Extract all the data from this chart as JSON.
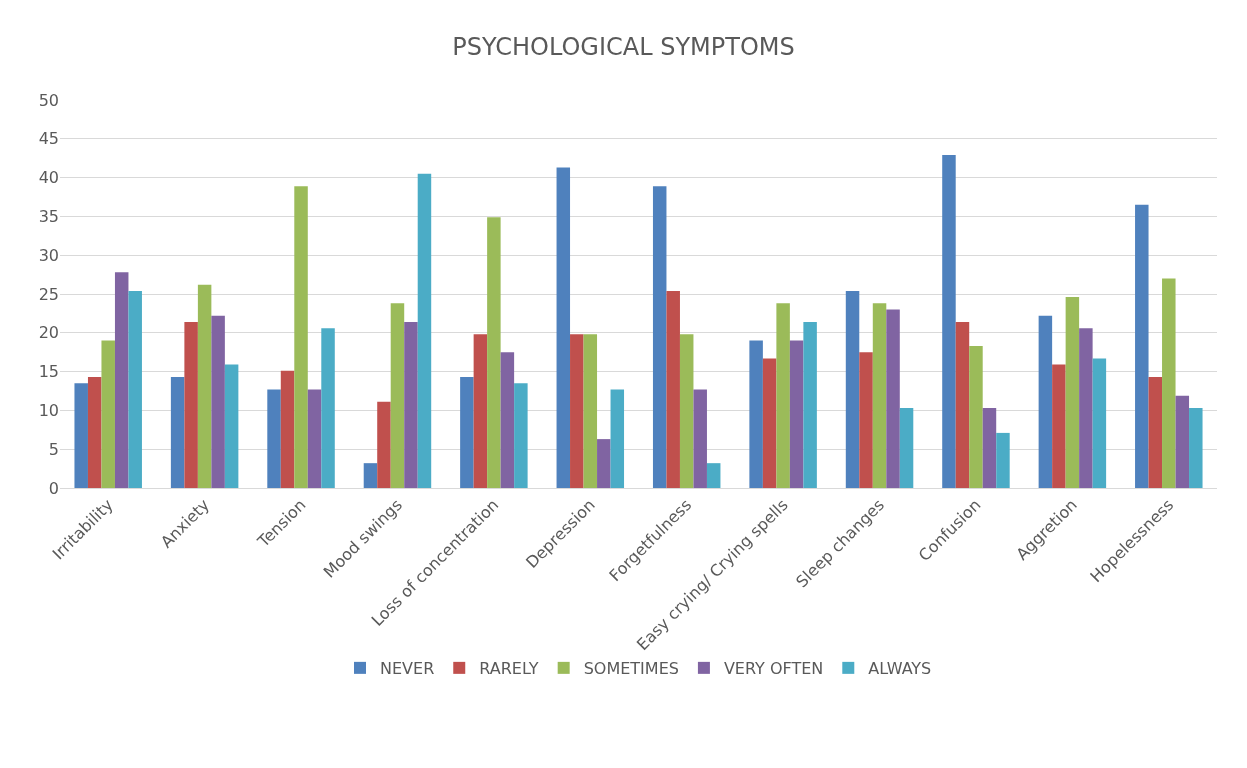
{
  "chart_data": {
    "type": "bar",
    "title": "PSYCHOLOGICAL SYMPTOMS",
    "categories": [
      "Irritability",
      "Anxiety",
      "Tension",
      "Mood swings",
      "Loss of concentration",
      "Depression",
      "Forgetfulness",
      "Easy crying/ Crying spells",
      "Sleep changes",
      "Confusion",
      "Aggretion",
      "Hopelessness"
    ],
    "series": [
      {
        "name": "NEVER",
        "color": "#4f81bd",
        "values": [
          13.5,
          14.3,
          12.7,
          3.2,
          14.3,
          41.3,
          38.9,
          19.0,
          25.4,
          42.9,
          22.2,
          36.5
        ]
      },
      {
        "name": "RARELY",
        "color": "#c0504d",
        "values": [
          14.3,
          21.4,
          15.1,
          11.1,
          19.8,
          19.8,
          25.4,
          16.7,
          17.5,
          21.4,
          15.9,
          14.3
        ]
      },
      {
        "name": "SOMETIMES",
        "color": "#9bbb59",
        "values": [
          19.0,
          26.2,
          38.9,
          23.8,
          34.9,
          19.8,
          19.8,
          23.8,
          23.8,
          18.3,
          24.6,
          27.0
        ]
      },
      {
        "name": "VERY OFTEN",
        "color": "#8064a2",
        "values": [
          27.8,
          22.2,
          12.7,
          21.4,
          17.5,
          6.3,
          12.7,
          19.0,
          23.0,
          10.3,
          20.6,
          11.9
        ]
      },
      {
        "name": "ALWAYS",
        "color": "#4bacc6",
        "values": [
          25.4,
          15.9,
          20.6,
          40.5,
          13.5,
          12.7,
          3.2,
          21.4,
          10.3,
          7.1,
          16.7,
          10.3
        ]
      }
    ],
    "ylim": [
      0,
      50
    ],
    "yticks": [
      0,
      5,
      10,
      15,
      20,
      25,
      30,
      35,
      40,
      45,
      50
    ],
    "grid": "y",
    "legend": "bottom"
  }
}
